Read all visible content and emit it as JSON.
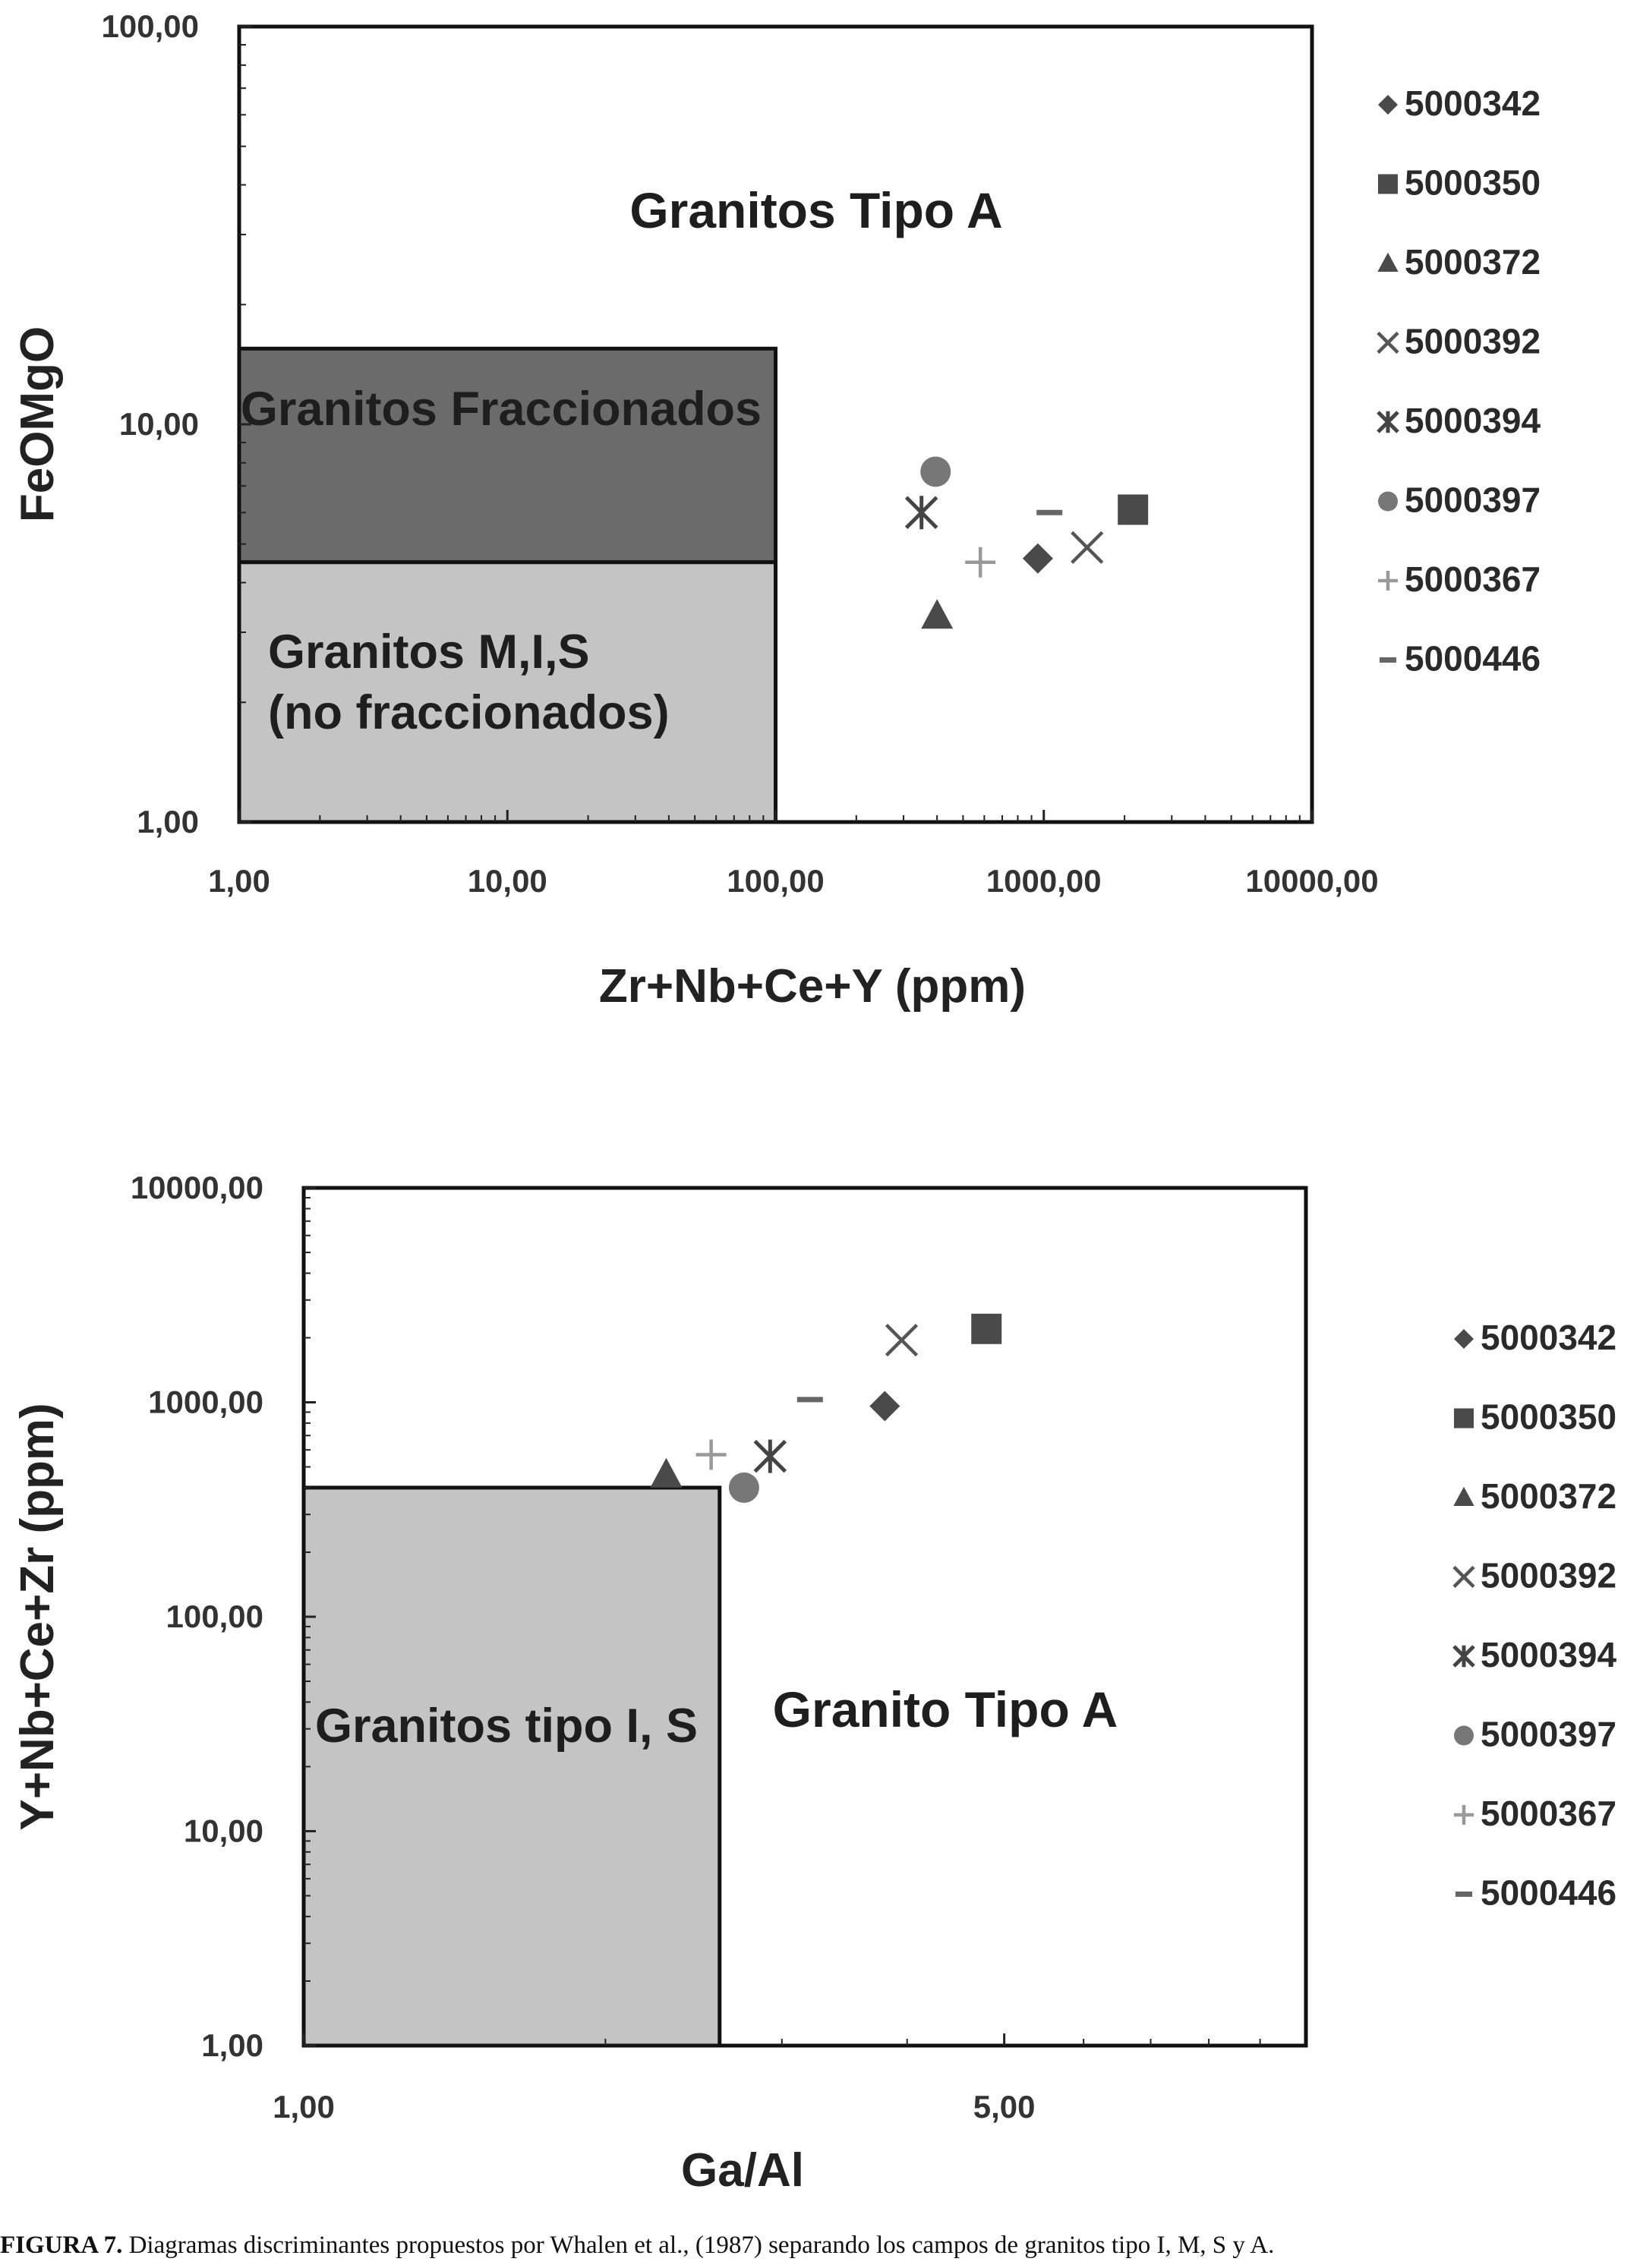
{
  "chart_data": [
    {
      "type": "scatter",
      "xlabel": "Zr+Nb+Ce+Y (ppm)",
      "ylabel": "FeOMgO",
      "xscale": "log",
      "yscale": "log",
      "xlim": [
        1,
        10000
      ],
      "ylim": [
        1,
        100
      ],
      "xticks": [
        "1,00",
        "10,00",
        "100,00",
        "1000,00",
        "10000,00"
      ],
      "yticks": [
        "1,00",
        "10,00",
        "100,00"
      ],
      "legend_position": "right",
      "regions": [
        {
          "label": "Granitos Tipo A"
        },
        {
          "label": "Granitos Fraccionados",
          "x": [
            1,
            100
          ],
          "y": [
            4.5,
            15.5
          ],
          "color": "#6b6b6b"
        },
        {
          "label_lines": [
            "Granitos M,I,S",
            "(no fraccionados)"
          ],
          "x": [
            1,
            100
          ],
          "y": [
            1,
            4.5
          ],
          "color": "#c4c4c4"
        }
      ],
      "series": [
        {
          "name": "5000342",
          "marker": "diamond",
          "color": "#4a4a4a",
          "x": [
            950
          ],
          "y": [
            4.6
          ]
        },
        {
          "name": "5000350",
          "marker": "square",
          "color": "#4a4a4a",
          "x": [
            2150
          ],
          "y": [
            6.1
          ]
        },
        {
          "name": "5000372",
          "marker": "triangle",
          "color": "#4a4a4a",
          "x": [
            400
          ],
          "y": [
            3.3
          ]
        },
        {
          "name": "5000392",
          "marker": "x",
          "color": "#555555",
          "x": [
            1450
          ],
          "y": [
            4.9
          ]
        },
        {
          "name": "5000394",
          "marker": "star",
          "color": "#444444",
          "x": [
            350
          ],
          "y": [
            6.0
          ]
        },
        {
          "name": "5000397",
          "marker": "circle",
          "color": "#777777",
          "x": [
            395
          ],
          "y": [
            7.6
          ]
        },
        {
          "name": "5000367",
          "marker": "plus",
          "color": "#999999",
          "x": [
            580
          ],
          "y": [
            4.5
          ]
        },
        {
          "name": "5000446",
          "marker": "dash",
          "color": "#666666",
          "x": [
            1050
          ],
          "y": [
            6.0
          ]
        }
      ]
    },
    {
      "type": "scatter",
      "xlabel": "Ga/Al",
      "ylabel": "Y+Nb+Ce+Zr (ppm)",
      "xscale": "log",
      "yscale": "log",
      "xlim": [
        1,
        10
      ],
      "ylim": [
        1,
        10000
      ],
      "xticks": [
        "1,00",
        "5,00"
      ],
      "yticks": [
        "1,00",
        "10,00",
        "100,00",
        "1000,00",
        "10000,00"
      ],
      "legend_position": "right",
      "regions": [
        {
          "label": "Granitos tipo I, S",
          "x": [
            1,
            2.6
          ],
          "y": [
            1,
            400
          ],
          "color": "#c4c4c4"
        },
        {
          "label": "Granito Tipo A"
        }
      ],
      "series": [
        {
          "name": "5000342",
          "marker": "diamond",
          "color": "#4a4a4a",
          "x": [
            3.8
          ],
          "y": [
            960
          ]
        },
        {
          "name": "5000350",
          "marker": "square",
          "color": "#4a4a4a",
          "x": [
            4.8
          ],
          "y": [
            2200
          ]
        },
        {
          "name": "5000372",
          "marker": "triangle",
          "color": "#4a4a4a",
          "x": [
            2.3
          ],
          "y": [
            460
          ]
        },
        {
          "name": "5000392",
          "marker": "x",
          "color": "#555555",
          "x": [
            3.95
          ],
          "y": [
            1950
          ]
        },
        {
          "name": "5000394",
          "marker": "star",
          "color": "#444444",
          "x": [
            2.92
          ],
          "y": [
            560
          ]
        },
        {
          "name": "5000397",
          "marker": "circle",
          "color": "#777777",
          "x": [
            2.75
          ],
          "y": [
            400
          ]
        },
        {
          "name": "5000367",
          "marker": "plus",
          "color": "#999999",
          "x": [
            2.55
          ],
          "y": [
            570
          ]
        },
        {
          "name": "5000446",
          "marker": "dash",
          "color": "#666666",
          "x": [
            3.2
          ],
          "y": [
            1030
          ]
        }
      ]
    }
  ],
  "caption": {
    "label": "FIGURA 7.",
    "text": " Diagramas discriminantes propuestos por Whalen et al., (1987) separando los campos de granitos tipo I, M, S y A."
  }
}
